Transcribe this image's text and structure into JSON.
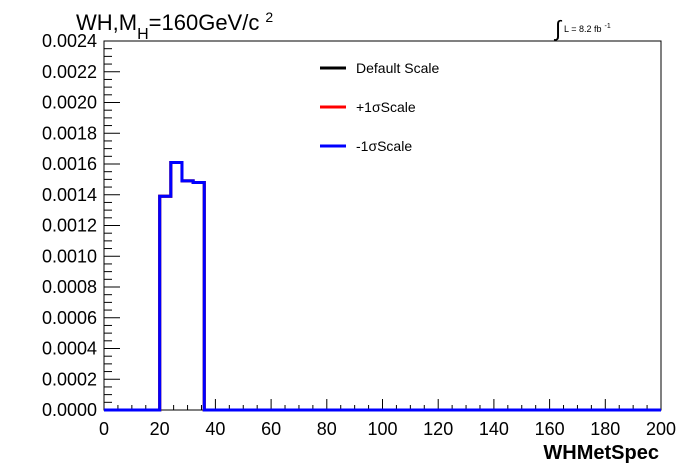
{
  "chart_data": {
    "type": "line",
    "title": {
      "main": "WH,M",
      "subscript": "H",
      "rest": "=160GeV/c",
      "superscript": "2"
    },
    "lumi": {
      "integral": "∫",
      "text": "L = 8.2 fb",
      "superscript": "-1"
    },
    "xlabel": "WHMetSpec",
    "ylabel": "",
    "xlim": [
      0,
      200
    ],
    "ylim": [
      0,
      0.0024
    ],
    "x_ticks": [
      "0",
      "20",
      "40",
      "60",
      "80",
      "100",
      "120",
      "140",
      "160",
      "180",
      "200"
    ],
    "y_ticks": [
      "0.0000",
      "0.0002",
      "0.0004",
      "0.0006",
      "0.0008",
      "0.0010",
      "0.0012",
      "0.0014",
      "0.0016",
      "0.0018",
      "0.0020",
      "0.0022",
      "0.0024"
    ],
    "bin_edges": [
      0,
      4,
      8,
      12,
      16,
      20,
      24,
      28,
      32,
      36,
      40,
      44,
      48,
      52,
      56,
      60,
      64,
      68,
      72,
      76,
      80,
      84,
      88,
      92,
      96,
      100,
      104,
      108,
      112,
      116,
      120,
      124,
      128,
      132,
      136,
      140,
      144,
      148,
      152,
      156,
      160,
      164,
      168,
      172,
      176,
      180,
      184,
      188,
      192,
      196,
      200
    ],
    "series": [
      {
        "name": "Default Scale",
        "color": "#000000",
        "values": [
          0,
          0,
          0,
          0,
          0,
          0.00139,
          0.00161,
          0.00149,
          0.00148,
          0,
          0,
          0,
          0,
          0,
          0,
          0,
          0,
          0,
          0,
          0,
          0,
          0,
          0,
          0,
          0,
          0,
          0,
          0,
          0,
          0,
          0,
          0,
          0,
          0,
          0,
          0,
          0,
          0,
          0,
          0,
          0,
          0,
          0,
          0,
          0,
          0,
          0,
          0,
          0,
          0
        ]
      },
      {
        "name": "+1σScale",
        "color": "#ff0000",
        "values": [
          0,
          0,
          0,
          0,
          0,
          0.00139,
          0.00161,
          0.00149,
          0.00148,
          0,
          0,
          0,
          0,
          0,
          0,
          0,
          0,
          0,
          0,
          0,
          0,
          0,
          0,
          0,
          0,
          0,
          0,
          0,
          0,
          0,
          0,
          0,
          0,
          0,
          0,
          0,
          0,
          0,
          0,
          0,
          0,
          0,
          0,
          0,
          0,
          0,
          0,
          0,
          0,
          0
        ]
      },
      {
        "name": "-1σScale",
        "color": "#0000ff",
        "values": [
          0,
          0,
          0,
          0,
          0,
          0.00139,
          0.00161,
          0.00149,
          0.00148,
          0,
          0,
          0,
          0,
          0,
          0,
          0,
          0,
          0,
          0,
          0,
          0,
          0,
          0,
          0,
          0,
          0,
          0,
          0,
          0,
          0,
          0,
          0,
          0,
          0,
          0,
          0,
          0,
          0,
          0,
          0,
          0,
          0,
          0,
          0,
          0,
          0,
          0,
          0,
          0,
          0
        ]
      }
    ],
    "legend_position": "top-center",
    "grid": false
  }
}
